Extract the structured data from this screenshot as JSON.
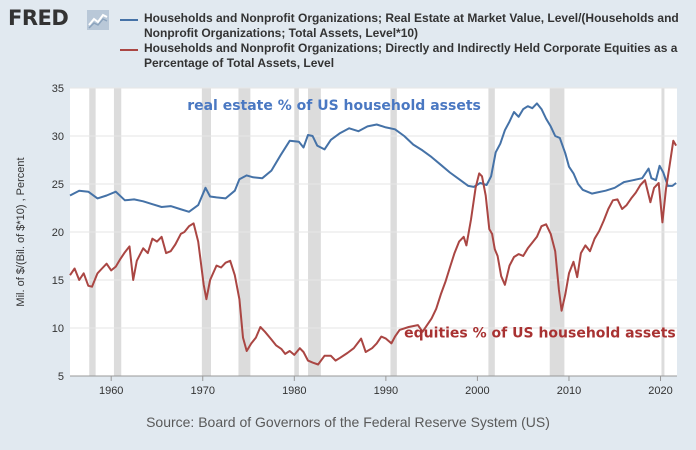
{
  "header": {
    "logo_text": "FRED",
    "logo_icon": "chart-line-icon"
  },
  "chart_data": {
    "type": "line",
    "title": "",
    "xlabel": "",
    "ylabel": "Mil. of $/(Bil. of $*10) , Percent",
    "xlim": [
      1955.5,
      2021.8
    ],
    "ylim": [
      5,
      35
    ],
    "y_ticks": [
      5,
      10,
      15,
      20,
      25,
      30,
      35
    ],
    "x_ticks": [
      1960,
      1970,
      1980,
      1990,
      2000,
      2010,
      2020
    ],
    "recessions": [
      [
        1957.6,
        1958.3
      ],
      [
        1960.3,
        1961.1
      ],
      [
        1969.9,
        1970.9
      ],
      [
        1973.9,
        1975.2
      ],
      [
        1980.0,
        1980.5
      ],
      [
        1981.5,
        1982.9
      ],
      [
        1990.5,
        1991.2
      ],
      [
        2001.2,
        2001.9
      ],
      [
        2007.9,
        2009.5
      ],
      [
        2020.1,
        2020.4
      ]
    ],
    "series": [
      {
        "name": "Households and Nonprofit Organizations; Real Estate at Market Value, Level/(Households and Nonprofit Organizations; Total Assets, Level*10)",
        "color": "#4572a7",
        "points": [
          [
            1955.5,
            23.8
          ],
          [
            1956.5,
            24.3
          ],
          [
            1957.5,
            24.2
          ],
          [
            1958.5,
            23.5
          ],
          [
            1959.5,
            23.8
          ],
          [
            1960.5,
            24.2
          ],
          [
            1961.5,
            23.3
          ],
          [
            1962.5,
            23.4
          ],
          [
            1963.5,
            23.2
          ],
          [
            1964.5,
            22.9
          ],
          [
            1965.5,
            22.6
          ],
          [
            1966.5,
            22.7
          ],
          [
            1967.5,
            22.4
          ],
          [
            1968.5,
            22.1
          ],
          [
            1969.5,
            22.8
          ],
          [
            1970.3,
            24.6
          ],
          [
            1970.8,
            23.7
          ],
          [
            1971.5,
            23.6
          ],
          [
            1972.5,
            23.5
          ],
          [
            1973.5,
            24.3
          ],
          [
            1974.0,
            25.5
          ],
          [
            1974.8,
            25.9
          ],
          [
            1975.5,
            25.7
          ],
          [
            1976.5,
            25.6
          ],
          [
            1977.5,
            26.4
          ],
          [
            1978.5,
            28.0
          ],
          [
            1979.5,
            29.5
          ],
          [
            1980.5,
            29.4
          ],
          [
            1981.0,
            28.8
          ],
          [
            1981.5,
            30.1
          ],
          [
            1982.0,
            30.0
          ],
          [
            1982.5,
            29.0
          ],
          [
            1983.3,
            28.6
          ],
          [
            1984.0,
            29.6
          ],
          [
            1985.0,
            30.3
          ],
          [
            1986.0,
            30.8
          ],
          [
            1987.0,
            30.5
          ],
          [
            1988.0,
            31.0
          ],
          [
            1989.0,
            31.2
          ],
          [
            1990.0,
            30.9
          ],
          [
            1991.0,
            30.7
          ],
          [
            1992.0,
            30.0
          ],
          [
            1993.0,
            29.1
          ],
          [
            1994.0,
            28.5
          ],
          [
            1995.0,
            27.8
          ],
          [
            1996.0,
            27.0
          ],
          [
            1997.0,
            26.2
          ],
          [
            1998.0,
            25.5
          ],
          [
            1999.0,
            24.8
          ],
          [
            1999.6,
            24.7
          ],
          [
            2000.3,
            25.1
          ],
          [
            2001.0,
            24.9
          ],
          [
            2001.5,
            25.8
          ],
          [
            2002.0,
            28.3
          ],
          [
            2002.5,
            29.2
          ],
          [
            2003.0,
            30.6
          ],
          [
            2003.5,
            31.5
          ],
          [
            2004.0,
            32.5
          ],
          [
            2004.5,
            32.0
          ],
          [
            2005.0,
            32.8
          ],
          [
            2005.5,
            33.1
          ],
          [
            2006.0,
            32.9
          ],
          [
            2006.5,
            33.4
          ],
          [
            2007.0,
            32.8
          ],
          [
            2007.5,
            31.8
          ],
          [
            2008.0,
            31.0
          ],
          [
            2008.5,
            30.0
          ],
          [
            2009.0,
            29.8
          ],
          [
            2009.6,
            28.2
          ],
          [
            2010.0,
            26.8
          ],
          [
            2010.5,
            26.1
          ],
          [
            2011.0,
            25.0
          ],
          [
            2011.5,
            24.4
          ],
          [
            2012.0,
            24.2
          ],
          [
            2012.5,
            24.0
          ],
          [
            2013.0,
            24.1
          ],
          [
            2014.0,
            24.3
          ],
          [
            2015.0,
            24.6
          ],
          [
            2016.0,
            25.2
          ],
          [
            2017.0,
            25.4
          ],
          [
            2018.0,
            25.6
          ],
          [
            2018.7,
            26.6
          ],
          [
            2019.0,
            25.6
          ],
          [
            2019.5,
            25.4
          ],
          [
            2019.9,
            26.9
          ],
          [
            2020.3,
            26.2
          ],
          [
            2020.8,
            24.8
          ],
          [
            2021.3,
            24.8
          ],
          [
            2021.7,
            25.1
          ]
        ]
      },
      {
        "name": "Households and Nonprofit Organizations; Directly and Indirectly Held Corporate Equities as a Percentage of Total Assets, Level",
        "color": "#aa4643",
        "points": [
          [
            1955.5,
            15.5
          ],
          [
            1956.0,
            16.2
          ],
          [
            1956.5,
            15.0
          ],
          [
            1957.0,
            15.7
          ],
          [
            1957.5,
            14.4
          ],
          [
            1957.9,
            14.3
          ],
          [
            1958.5,
            15.7
          ],
          [
            1959.0,
            16.2
          ],
          [
            1959.5,
            16.7
          ],
          [
            1960.0,
            16.0
          ],
          [
            1960.5,
            16.4
          ],
          [
            1961.0,
            17.2
          ],
          [
            1961.5,
            17.9
          ],
          [
            1962.0,
            18.5
          ],
          [
            1962.4,
            15.0
          ],
          [
            1962.8,
            17.0
          ],
          [
            1963.5,
            18.3
          ],
          [
            1964.0,
            17.8
          ],
          [
            1964.5,
            19.3
          ],
          [
            1965.0,
            19.0
          ],
          [
            1965.5,
            19.5
          ],
          [
            1966.0,
            17.8
          ],
          [
            1966.5,
            18.0
          ],
          [
            1967.0,
            18.7
          ],
          [
            1967.6,
            19.8
          ],
          [
            1968.0,
            20.0
          ],
          [
            1968.5,
            20.6
          ],
          [
            1969.0,
            20.9
          ],
          [
            1969.5,
            19.0
          ],
          [
            1970.1,
            14.5
          ],
          [
            1970.4,
            13.0
          ],
          [
            1970.8,
            15.0
          ],
          [
            1971.5,
            16.5
          ],
          [
            1972.0,
            16.3
          ],
          [
            1972.5,
            16.8
          ],
          [
            1973.0,
            17.0
          ],
          [
            1973.5,
            15.5
          ],
          [
            1974.0,
            13.0
          ],
          [
            1974.4,
            9.0
          ],
          [
            1974.8,
            7.6
          ],
          [
            1975.3,
            8.4
          ],
          [
            1975.8,
            9.0
          ],
          [
            1976.3,
            10.1
          ],
          [
            1976.8,
            9.6
          ],
          [
            1977.5,
            8.8
          ],
          [
            1978.0,
            8.2
          ],
          [
            1978.6,
            7.8
          ],
          [
            1979.0,
            7.3
          ],
          [
            1979.5,
            7.6
          ],
          [
            1980.0,
            7.2
          ],
          [
            1980.6,
            7.9
          ],
          [
            1981.0,
            7.5
          ],
          [
            1981.5,
            6.6
          ],
          [
            1982.0,
            6.4
          ],
          [
            1982.6,
            6.2
          ],
          [
            1983.3,
            7.1
          ],
          [
            1984.0,
            7.1
          ],
          [
            1984.5,
            6.6
          ],
          [
            1985.0,
            6.9
          ],
          [
            1985.8,
            7.4
          ],
          [
            1986.5,
            7.9
          ],
          [
            1987.3,
            8.9
          ],
          [
            1987.8,
            7.5
          ],
          [
            1988.5,
            7.9
          ],
          [
            1989.0,
            8.4
          ],
          [
            1989.5,
            9.1
          ],
          [
            1990.0,
            8.9
          ],
          [
            1990.6,
            8.4
          ],
          [
            1991.0,
            9.1
          ],
          [
            1991.5,
            9.8
          ],
          [
            1992.5,
            10.1
          ],
          [
            1993.5,
            10.3
          ],
          [
            1994.0,
            9.6
          ],
          [
            1994.5,
            10.3
          ],
          [
            1995.0,
            11.0
          ],
          [
            1995.5,
            12.0
          ],
          [
            1996.0,
            13.5
          ],
          [
            1996.5,
            14.8
          ],
          [
            1997.0,
            16.3
          ],
          [
            1997.5,
            17.8
          ],
          [
            1998.0,
            19.0
          ],
          [
            1998.5,
            19.5
          ],
          [
            1998.8,
            18.6
          ],
          [
            1999.3,
            21.3
          ],
          [
            1999.8,
            24.6
          ],
          [
            2000.2,
            26.1
          ],
          [
            2000.5,
            25.8
          ],
          [
            2000.9,
            23.8
          ],
          [
            2001.3,
            20.3
          ],
          [
            2001.6,
            19.8
          ],
          [
            2001.9,
            18.2
          ],
          [
            2002.2,
            17.5
          ],
          [
            2002.6,
            15.4
          ],
          [
            2003.0,
            14.5
          ],
          [
            2003.5,
            16.5
          ],
          [
            2004.0,
            17.4
          ],
          [
            2004.5,
            17.7
          ],
          [
            2005.0,
            17.5
          ],
          [
            2005.5,
            18.3
          ],
          [
            2006.0,
            18.9
          ],
          [
            2006.5,
            19.5
          ],
          [
            2007.0,
            20.6
          ],
          [
            2007.5,
            20.8
          ],
          [
            2008.0,
            19.8
          ],
          [
            2008.5,
            18.0
          ],
          [
            2008.9,
            14.0
          ],
          [
            2009.2,
            11.8
          ],
          [
            2009.6,
            13.5
          ],
          [
            2010.0,
            15.7
          ],
          [
            2010.5,
            16.9
          ],
          [
            2010.9,
            15.3
          ],
          [
            2011.3,
            17.8
          ],
          [
            2011.8,
            18.6
          ],
          [
            2012.3,
            18.0
          ],
          [
            2012.8,
            19.3
          ],
          [
            2013.3,
            20.1
          ],
          [
            2013.8,
            21.2
          ],
          [
            2014.3,
            22.4
          ],
          [
            2014.8,
            23.3
          ],
          [
            2015.3,
            23.4
          ],
          [
            2015.8,
            22.4
          ],
          [
            2016.3,
            22.8
          ],
          [
            2016.8,
            23.5
          ],
          [
            2017.3,
            24.1
          ],
          [
            2017.8,
            24.9
          ],
          [
            2018.3,
            25.4
          ],
          [
            2018.9,
            23.1
          ],
          [
            2019.3,
            24.6
          ],
          [
            2019.8,
            25.1
          ],
          [
            2020.2,
            21.0
          ],
          [
            2020.6,
            24.5
          ],
          [
            2021.0,
            27.0
          ],
          [
            2021.4,
            29.5
          ],
          [
            2021.7,
            29.0
          ]
        ]
      }
    ],
    "annotations": [
      {
        "text": "real estate % of US household assets",
        "color": "#4a78c2",
        "x": 1968.3,
        "y": 32.7
      },
      {
        "text": "equities % of US household assets",
        "color": "#a83232",
        "x": 1992.0,
        "y": 9.0
      }
    ],
    "source": "Source: Board of Governors of the Federal Reserve System (US)"
  }
}
